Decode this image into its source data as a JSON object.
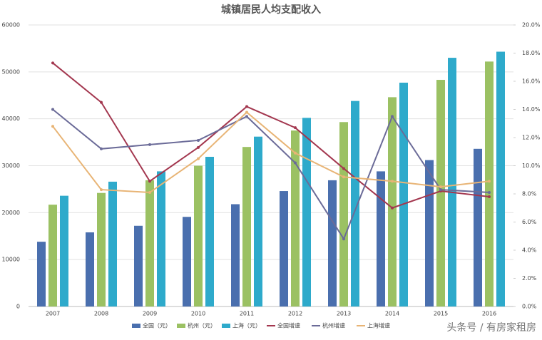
{
  "chart_data": {
    "type": "bar-line",
    "title": "城镇居民人均支配收入",
    "categories": [
      "2007",
      "2008",
      "2009",
      "2010",
      "2011",
      "2012",
      "2013",
      "2014",
      "2015",
      "2016"
    ],
    "series": [
      {
        "name": "全国（元）",
        "kind": "bar",
        "color": "#4a6fae",
        "values": [
          13800,
          15800,
          17200,
          19100,
          21800,
          24600,
          26900,
          28800,
          31200,
          33600
        ]
      },
      {
        "name": "杭州（元）",
        "kind": "bar",
        "color": "#9bc163",
        "values": [
          21700,
          24200,
          26900,
          30000,
          34000,
          37500,
          39300,
          44600,
          48300,
          52200
        ]
      },
      {
        "name": "上海（元）",
        "kind": "bar",
        "color": "#2eaacb",
        "values": [
          23600,
          26600,
          28800,
          31900,
          36200,
          40200,
          43800,
          47700,
          53000,
          54300
        ]
      },
      {
        "name": "全国增速",
        "kind": "line",
        "axis": "y2",
        "color": "#a3374f",
        "values": [
          17.3,
          14.5,
          8.9,
          11.3,
          14.2,
          12.7,
          9.8,
          7.0,
          8.2,
          7.8
        ]
      },
      {
        "name": "杭州增速",
        "kind": "line",
        "axis": "y2",
        "color": "#6b6b98",
        "values": [
          14.0,
          11.2,
          11.5,
          11.8,
          13.5,
          10.2,
          4.8,
          13.5,
          8.3,
          8.1
        ]
      },
      {
        "name": "上海增速",
        "kind": "line",
        "axis": "y2",
        "color": "#e8b475",
        "values": [
          12.8,
          8.3,
          8.1,
          10.5,
          13.8,
          10.9,
          9.2,
          8.9,
          8.5,
          8.9
        ]
      }
    ],
    "ylim": [
      0,
      60000
    ],
    "yticks": [
      0,
      10000,
      20000,
      30000,
      40000,
      50000,
      60000
    ],
    "y2lim": [
      0,
      20
    ],
    "y2ticks": [
      {
        "value": 0,
        "label": "0.0%"
      },
      {
        "value": 2,
        "label": "2.0%"
      },
      {
        "value": 4,
        "label": "4.0%"
      },
      {
        "value": 6,
        "label": "6.0%"
      },
      {
        "value": 8,
        "label": "8.0%"
      },
      {
        "value": 10,
        "label": "10.0%"
      },
      {
        "value": 12,
        "label": "12.0%"
      },
      {
        "value": 14,
        "label": "14.0%"
      },
      {
        "value": 16,
        "label": "16.0%"
      },
      {
        "value": 18,
        "label": "18.0%"
      },
      {
        "value": 20,
        "label": "20.0%"
      }
    ],
    "grid": true,
    "legend": "bottom",
    "annotations": [
      "头条号 / 有房家租房"
    ]
  }
}
